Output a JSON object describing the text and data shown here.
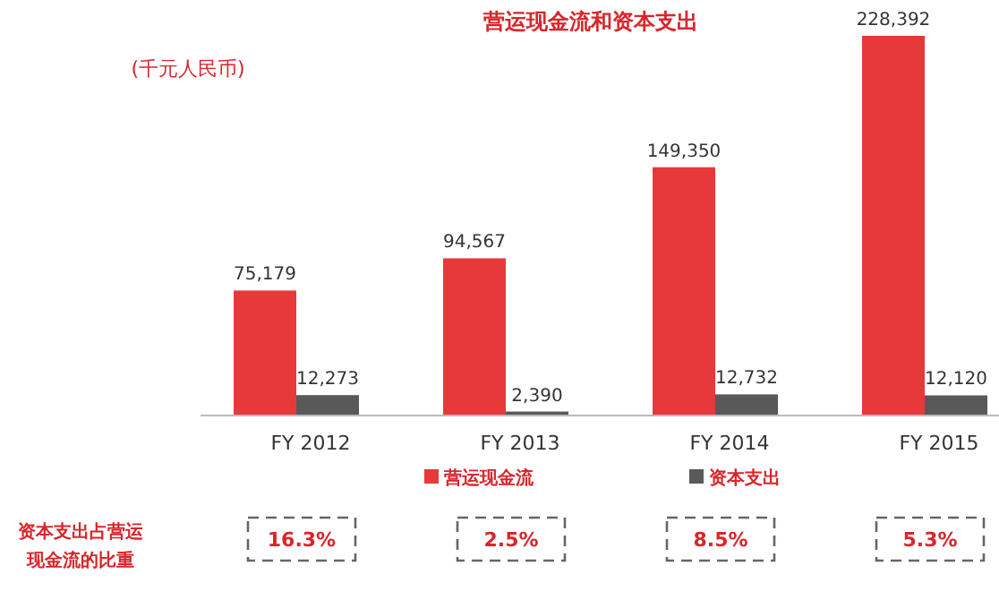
{
  "chart_data": {
    "type": "bar",
    "title": "营运现金流和资本支出",
    "subtitle": "(千元人民币)",
    "categories": [
      "FY 2012",
      "FY 2013",
      "FY 2014",
      "FY 2015"
    ],
    "series": [
      {
        "name": "营运现金流",
        "color": "#e8393a",
        "values": [
          75179,
          94567,
          149350,
          228392
        ],
        "value_labels": [
          "75,179",
          "94,567",
          "149,350",
          "228,392"
        ]
      },
      {
        "name": "资本支出",
        "color": "#595959",
        "values": [
          12273,
          2390,
          12732,
          12120
        ],
        "value_labels": [
          "12,273",
          "2,390",
          "12,732",
          "12,120"
        ]
      }
    ],
    "legend": "bottom",
    "grid": false,
    "annotations": [
      "资本支出占营运现金流的比重",
      "16.3%",
      "2.5%",
      "8.5%",
      "5.3%"
    ]
  }
}
